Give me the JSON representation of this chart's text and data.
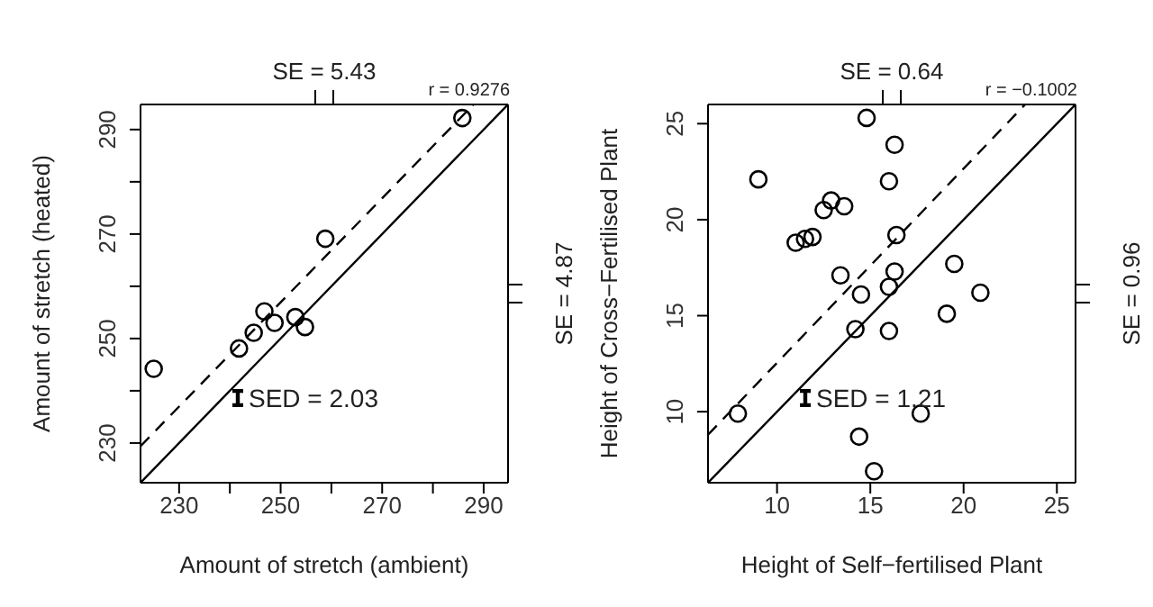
{
  "chart_data": [
    {
      "type": "scatter",
      "xlabel": "Amount of stretch (ambient)",
      "ylabel": "Amount of stretch (heated)",
      "x2label": "SE = 5.43",
      "y2label": "SE = 4.87",
      "xlim": [
        222.4,
        294.8
      ],
      "ylim": [
        222.4,
        294.8
      ],
      "xticks": [
        230,
        {
          "value": 240,
          "label": null
        },
        250,
        {
          "value": 260,
          "label": null
        },
        270,
        {
          "value": 280,
          "label": null
        },
        290
      ],
      "yticks": [
        230,
        {
          "value": 240,
          "label": null
        },
        250,
        {
          "value": 260,
          "label": null
        },
        270,
        {
          "value": 280,
          "label": null
        },
        290
      ],
      "tick_labels": [
        "x",
        "y"
      ],
      "annotations": [
        "r = 0.9276",
        "SED = 2.03"
      ],
      "series": [
        {
          "type": "scatter",
          "marker": "circle",
          "color": "#000000",
          "x": [
            225.0,
            241.8,
            244.7,
            246.8,
            248.8,
            252.9,
            254.8,
            258.8,
            285.8
          ],
          "values": [
            244.2,
            248.1,
            251.1,
            255.2,
            253.0,
            254.1,
            252.2,
            269.1,
            292.2
          ]
        },
        {
          "type": "line",
          "line_style": "solid",
          "color": "#000000",
          "x": [
            222.4,
            294.8
          ],
          "values": [
            222.4,
            294.8
          ]
        },
        {
          "type": "line",
          "line_style": "dashed",
          "color": "#000000",
          "x": [
            222.4,
            288.0
          ],
          "values": [
            229.4,
            294.8
          ]
        }
      ]
    },
    {
      "type": "scatter",
      "xlabel": "Height of Self−fertilised Plant",
      "ylabel": "Height of Cross−Fertilised Plant",
      "x2label": "SE = 0.64",
      "y2label": "SE = 0.96",
      "xlim": [
        6.3,
        26
      ],
      "ylim": [
        6.3,
        26
      ],
      "xticks": [
        10,
        15,
        20,
        25
      ],
      "yticks": [
        10,
        15,
        20,
        25
      ],
      "tick_labels": [
        "x",
        "y"
      ],
      "annotations": [
        "r = −0.1002",
        "SED = 1.21"
      ],
      "series": [
        {
          "type": "scatter",
          "marker": "circle",
          "color": "#000000",
          "x": [
            7.9,
            9.0,
            11.0,
            11.5,
            11.9,
            12.5,
            12.9,
            13.6,
            13.4,
            14.2,
            14.5,
            14.8,
            14.4,
            15.2,
            16.0,
            16.0,
            16.0,
            16.3,
            16.3,
            16.4,
            17.7,
            19.1,
            19.5,
            20.9
          ],
          "values": [
            9.9,
            22.1,
            18.8,
            19.0,
            19.1,
            20.5,
            21.0,
            20.7,
            17.1,
            14.3,
            16.1,
            25.3,
            8.7,
            6.9,
            22.0,
            14.2,
            16.5,
            23.9,
            17.3,
            19.2,
            9.9,
            15.1,
            17.7,
            16.2
          ]
        },
        {
          "type": "line",
          "line_style": "solid",
          "color": "#000000",
          "x": [
            6.3,
            26
          ],
          "values": [
            6.3,
            26
          ]
        },
        {
          "type": "line",
          "line_style": "dashed",
          "color": "#000000",
          "x": [
            6.3,
            23.3
          ],
          "values": [
            8.8,
            26
          ]
        }
      ]
    }
  ]
}
